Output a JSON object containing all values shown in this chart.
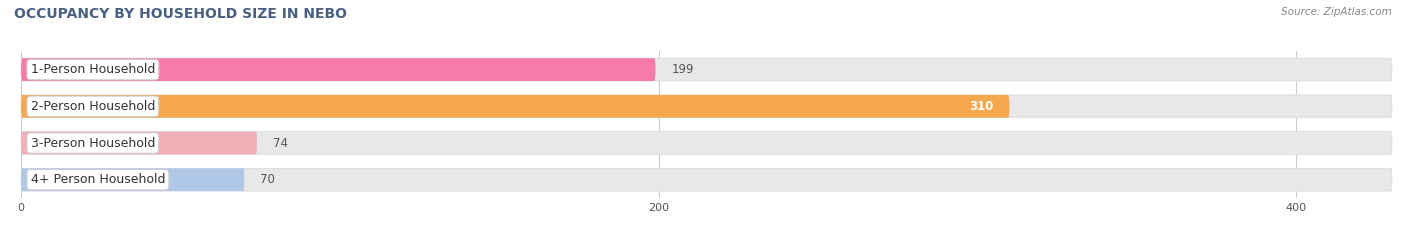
{
  "title": "OCCUPANCY BY HOUSEHOLD SIZE IN NEBO",
  "source": "Source: ZipAtlas.com",
  "categories": [
    "1-Person Household",
    "2-Person Household",
    "3-Person Household",
    "4+ Person Household"
  ],
  "values": [
    199,
    310,
    74,
    70
  ],
  "bar_colors": [
    "#f87aaa",
    "#f5a84e",
    "#f0b0b8",
    "#b0c8e8"
  ],
  "track_color": "#e8e8e8",
  "track_edge_color": "#d8d8d8",
  "xlim_data": [
    0,
    430
  ],
  "xticks": [
    0,
    200,
    400
  ],
  "background_color": "#ffffff",
  "title_fontsize": 10,
  "label_fontsize": 9,
  "value_fontsize": 8.5,
  "figsize": [
    14.06,
    2.33
  ],
  "dpi": 100
}
